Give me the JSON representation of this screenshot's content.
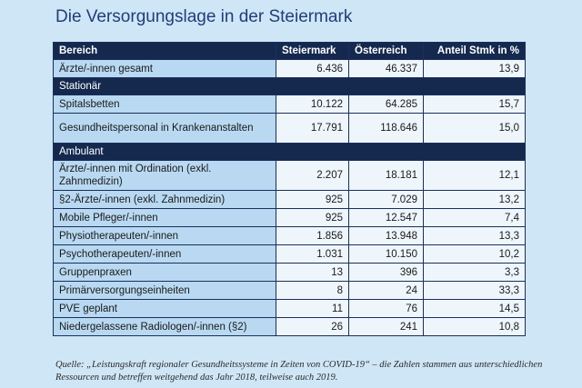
{
  "title": "Die Versorgungslage in der Steiermark",
  "table": {
    "headers": [
      "Bereich",
      "Steiermark",
      "Österreich",
      "Anteil Stmk in %"
    ],
    "top_rows": [
      {
        "label": "Ärzte/-innen gesamt",
        "stmk": "6.436",
        "oe": "46.337",
        "pct": "13,9",
        "tall": false
      }
    ],
    "sections": [
      {
        "title": "Stationär",
        "rows": [
          {
            "label": "Spitalsbetten",
            "stmk": "10.122",
            "oe": "64.285",
            "pct": "15,7",
            "tall": false
          },
          {
            "label": "Gesundheitspersonal in Krankenanstalten",
            "stmk": "17.791",
            "oe": "118.646",
            "pct": "15,0",
            "tall": true
          }
        ]
      },
      {
        "title": "Ambulant",
        "rows": [
          {
            "label": "Ärzte/-innen mit Ordination (exkl. Zahnmedizin)",
            "stmk": "2.207",
            "oe": "18.181",
            "pct": "12,1",
            "tall": true
          },
          {
            "label": "§2-Ärzte/-innen (exkl. Zahnmedizin)",
            "stmk": "925",
            "oe": "7.029",
            "pct": "13,2",
            "tall": false
          },
          {
            "label": "Mobile Pfleger/-innen",
            "stmk": "925",
            "oe": "12.547",
            "pct": "7,4",
            "tall": false
          },
          {
            "label": "Physiotherapeuten/-innen",
            "stmk": "1.856",
            "oe": "13.948",
            "pct": "13,3",
            "tall": false
          },
          {
            "label": "Psychotherapeuten/-innen",
            "stmk": "1.031",
            "oe": "10.150",
            "pct": "10,2",
            "tall": false
          },
          {
            "label": "Gruppenpraxen",
            "stmk": "13",
            "oe": "396",
            "pct": "3,3",
            "tall": false
          },
          {
            "label": "Primärversorgungseinheiten",
            "stmk": "8",
            "oe": "24",
            "pct": "33,3",
            "tall": false
          },
          {
            "label": "PVE geplant",
            "stmk": "11",
            "oe": "76",
            "pct": "14,5",
            "tall": false
          },
          {
            "label": "Niedergelassene Radiologen/-innen (§2)",
            "stmk": "26",
            "oe": "241",
            "pct": "10,8",
            "tall": false
          }
        ]
      }
    ]
  },
  "caption": "Quelle: „Leistungskraft regionaler Gesundheitssysteme in Zeiten von COVID-19“ – die Zahlen stammen aus unterschiedlichen Ressourcen und betreffen weitgehend das Jahr 2018, teilweise auch 2019."
}
